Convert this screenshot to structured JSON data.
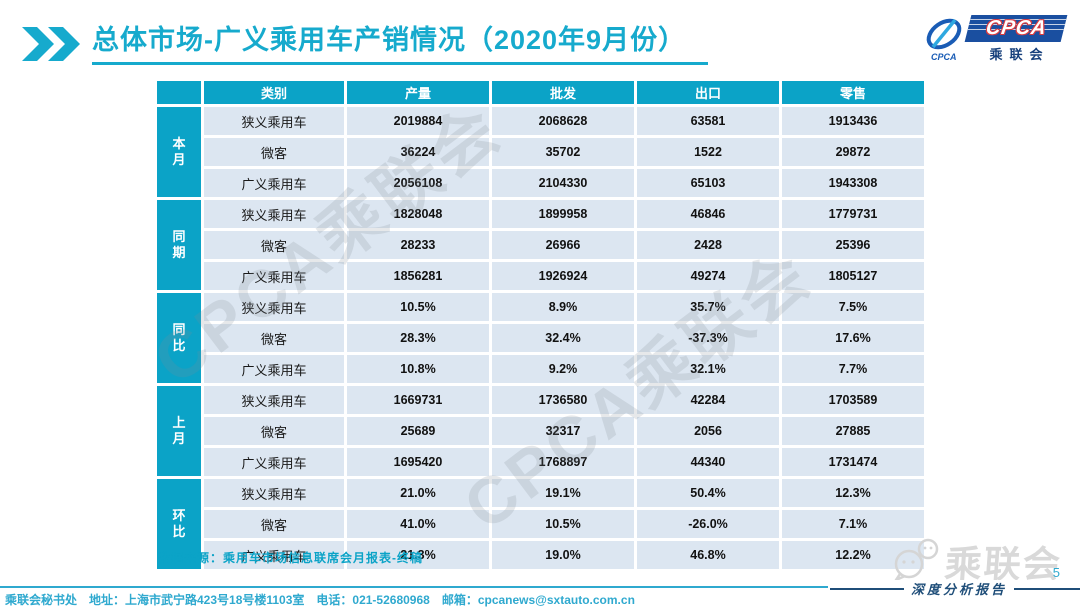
{
  "slide": {
    "title": "总体市场-广义乘用车产销情况（2020年9月份）",
    "page_number": "5",
    "report_type_label": "深度分析报告",
    "source_note": "数据来源：乘用车市场信息联席会月报表-终稿",
    "footer_text": "乘联会秘书处　地址：上海市武宁路423号18号楼1103室　电话：021-52680968　邮箱：cpcanews@sxtauto.com.cn",
    "watermark_text": "CPCA乘联会",
    "corner_logo_text": "乘联会"
  },
  "logo": {
    "badge_text": "CPCA",
    "badge_cn_text": "乘联会",
    "swoosh_caption": "CPCA"
  },
  "table": {
    "header": [
      "类别",
      "产量",
      "批发",
      "出口",
      "零售"
    ],
    "groups": [
      {
        "label": "本月",
        "rows": [
          {
            "category": "狭义乘用车",
            "values": [
              "2019884",
              "2068628",
              "63581",
              "1913436"
            ]
          },
          {
            "category": "微客",
            "values": [
              "36224",
              "35702",
              "1522",
              "29872"
            ]
          },
          {
            "category": "广义乘用车",
            "values": [
              "2056108",
              "2104330",
              "65103",
              "1943308"
            ]
          }
        ]
      },
      {
        "label": "同期",
        "rows": [
          {
            "category": "狭义乘用车",
            "values": [
              "1828048",
              "1899958",
              "46846",
              "1779731"
            ]
          },
          {
            "category": "微客",
            "values": [
              "28233",
              "26966",
              "2428",
              "25396"
            ]
          },
          {
            "category": "广义乘用车",
            "values": [
              "1856281",
              "1926924",
              "49274",
              "1805127"
            ]
          }
        ]
      },
      {
        "label": "同比",
        "rows": [
          {
            "category": "狭义乘用车",
            "values": [
              "10.5%",
              "8.9%",
              "35.7%",
              "7.5%"
            ]
          },
          {
            "category": "微客",
            "values": [
              "28.3%",
              "32.4%",
              "-37.3%",
              "17.6%"
            ]
          },
          {
            "category": "广义乘用车",
            "values": [
              "10.8%",
              "9.2%",
              "32.1%",
              "7.7%"
            ]
          }
        ]
      },
      {
        "label": "上月",
        "rows": [
          {
            "category": "狭义乘用车",
            "values": [
              "1669731",
              "1736580",
              "42284",
              "1703589"
            ]
          },
          {
            "category": "微客",
            "values": [
              "25689",
              "32317",
              "2056",
              "27885"
            ]
          },
          {
            "category": "广义乘用车",
            "values": [
              "1695420",
              "1768897",
              "44340",
              "1731474"
            ]
          }
        ]
      },
      {
        "label": "环比",
        "rows": [
          {
            "category": "狭义乘用车",
            "values": [
              "21.0%",
              "19.1%",
              "50.4%",
              "12.3%"
            ]
          },
          {
            "category": "微客",
            "values": [
              "41.0%",
              "10.5%",
              "-26.0%",
              "7.1%"
            ]
          },
          {
            "category": "广义乘用车",
            "values": [
              "21.3%",
              "19.0%",
              "46.8%",
              "12.2%"
            ]
          }
        ]
      }
    ]
  },
  "colors": {
    "accent_cyan": "#0ba3c7",
    "title_cyan": "#16aacd",
    "row_bg": "#dce6f1",
    "navy": "#1f4e79",
    "logo_blue": "#1a4fa0",
    "logo_red": "#d93a3e",
    "gray_logo": "#d9d9d9",
    "footer_cyan": "#2fa9cf"
  }
}
